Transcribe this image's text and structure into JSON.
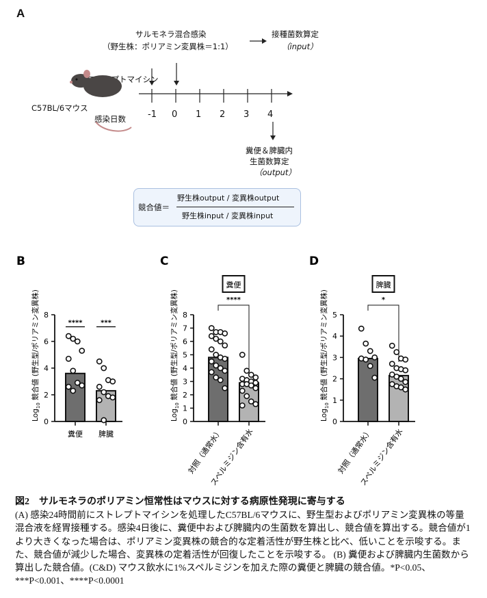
{
  "panelA": {
    "label": "A",
    "infection": "サルモネラ混合感染",
    "infection_ratio": "（野生株：ポリアミン変異株＝1:1）",
    "input_title": "接種菌数算定",
    "input_sub": "（input）",
    "streptomycin": "ストレプトマイシン",
    "mouse": "C57BL/6マウス",
    "days_label": "感染日数",
    "days": [
      "-1",
      "0",
      "1",
      "2",
      "3",
      "4"
    ],
    "output_line1": "糞便＆脾臓内",
    "output_line2": "生菌数算定",
    "output_sub": "（output）",
    "formula_lhs": "競合値＝",
    "formula_num": "野生株output / 変異株output",
    "formula_den": "野生株input / 変異株input"
  },
  "chart_data": [
    {
      "id": "B",
      "type": "bar",
      "label": "B",
      "ylabel": "Log10 競合値 (野生型/ポリアミン変異株)",
      "ylabel_prefix": "Log",
      "ylabel_sub": "10",
      "ylabel_rest": " 競合値 (野生型/ポリアミン変異株)",
      "ylim": [
        0,
        8
      ],
      "yticks": [
        "0",
        "2",
        "4",
        "6",
        "8"
      ],
      "categories": [
        "糞便",
        "脾臓"
      ],
      "values": [
        3.6,
        2.3
      ],
      "bar_colors": [
        "#6e6e6e",
        "#b3b3b3"
      ],
      "points": [
        [
          6.4,
          6.2,
          6.0,
          5.3,
          4.7,
          3.8,
          2.9,
          2.7,
          2.6,
          2.3
        ],
        [
          4.5,
          4.0,
          3.1,
          3.0,
          2.6,
          2.2,
          1.9,
          1.8,
          1.6,
          0.1
        ]
      ],
      "significance": [
        "****",
        "***"
      ],
      "rotate_labels": false
    },
    {
      "id": "C",
      "type": "bar",
      "label": "C",
      "title": "糞便",
      "ylabel_prefix": "Log",
      "ylabel_sub": "10",
      "ylabel_rest": " 競合値 (野生型/ポリアミン変異株)",
      "ylim": [
        0,
        8
      ],
      "yticks": [
        "0",
        "1",
        "2",
        "3",
        "4",
        "5",
        "6",
        "7",
        "8"
      ],
      "categories": [
        "対照（通常水）",
        "スペルミジン含有水"
      ],
      "values": [
        4.8,
        2.9
      ],
      "bar_colors": [
        "#6e6e6e",
        "#b3b3b3"
      ],
      "points": [
        [
          7.0,
          6.7,
          6.7,
          6.6,
          6.4,
          6.2,
          6.0,
          5.7,
          5.4,
          5.0,
          4.8,
          4.7,
          4.5,
          4.2,
          4.0,
          3.8,
          3.7,
          3.3,
          3.1,
          2.5
        ],
        [
          5.0,
          3.8,
          3.5,
          3.3,
          3.2,
          3.1,
          3.0,
          2.9,
          2.8,
          2.8,
          2.7,
          2.5,
          2.3,
          1.9,
          1.5,
          1.3,
          1.2
        ]
      ],
      "significance": "****",
      "rotate_labels": true
    },
    {
      "id": "D",
      "type": "bar",
      "label": "D",
      "title": "脾臓",
      "ylabel_prefix": "Log",
      "ylabel_sub": "10",
      "ylabel_rest": " 競合値 (野生型/ポリアミン変異株)",
      "ylim": [
        0,
        5
      ],
      "yticks": [
        "0",
        "1",
        "2",
        "3",
        "4",
        "5"
      ],
      "categories": [
        "対照（通常水）",
        "スペルミジン含有水"
      ],
      "values": [
        2.95,
        2.15
      ],
      "bar_colors": [
        "#6e6e6e",
        "#b3b3b3"
      ],
      "points": [
        [
          4.35,
          3.65,
          3.3,
          3.0,
          2.95,
          2.9,
          2.6,
          2.05
        ],
        [
          3.55,
          3.25,
          2.95,
          2.9,
          2.7,
          2.5,
          2.45,
          2.4,
          2.2,
          2.1,
          2.0,
          1.85,
          1.75,
          1.65,
          1.6,
          1.5
        ]
      ],
      "significance": "*",
      "rotate_labels": true
    }
  ],
  "caption": {
    "title": "図2　サルモネラのポリアミン恒常性はマウスに対する病原性発現に寄与する",
    "body": "(A) 感染24時間前にストレプトマイシンを処理したC57BL/6マウスに、野生型およびポリアミン変異株の等量混合液を経胃接種する。感染4日後に、糞便中および脾臓内の生菌数を算出し、競合値を算出する。競合値が1より大きくなった場合は、ポリアミン変異株の競合的な定着活性が野生株と比べ、低いことを示唆する。また、競合値が減少した場合、変異株の定着活性が回復したことを示唆する。 (B) 糞便および脾臓内生菌数から算出した競合値。(C&D) マウス飲水に1%スペルミジンを加えた際の糞便と脾臓の競合値。*P<0.05、***P<0.001、****P<0.0001"
  }
}
